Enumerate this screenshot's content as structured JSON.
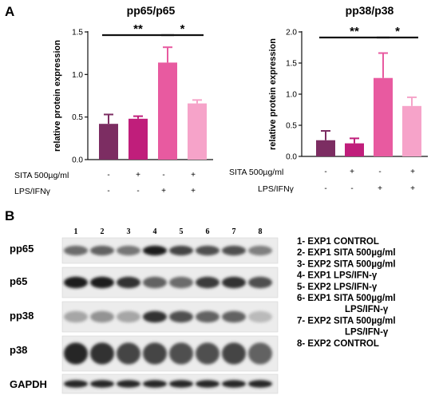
{
  "panel_letters": [
    "A",
    "B"
  ],
  "chart_data": [
    {
      "type": "bar",
      "title": "pp65/p65",
      "ylabel": "relative protein expression",
      "ylim": [
        0,
        1.5
      ],
      "yticks": [
        "0.0",
        "0.5",
        "1.0",
        "1.5"
      ],
      "values": [
        0.42,
        0.48,
        1.14,
        0.66
      ],
      "errors": [
        0.11,
        0.03,
        0.18,
        0.04
      ],
      "colors": [
        "#7c2d62",
        "#c01e7b",
        "#e85aa0",
        "#f6a3c9"
      ],
      "significance": [
        {
          "from": 1,
          "to": 3,
          "label": "**"
        },
        {
          "from": 3,
          "to": 4,
          "label": "*"
        }
      ]
    },
    {
      "type": "bar",
      "title": "pp38/p38",
      "ylabel": "relative protein expression",
      "ylim": [
        0,
        2.0
      ],
      "yticks": [
        "0.0",
        "0.5",
        "1.0",
        "1.5",
        "2.0"
      ],
      "values": [
        0.26,
        0.21,
        1.26,
        0.81
      ],
      "errors": [
        0.15,
        0.08,
        0.4,
        0.14
      ],
      "colors": [
        "#7c2d62",
        "#c01e7b",
        "#e85aa0",
        "#f6a3c9"
      ],
      "significance": [
        {
          "from": 1,
          "to": 3,
          "label": "**"
        },
        {
          "from": 3,
          "to": 4,
          "label": "*"
        }
      ]
    }
  ],
  "treatments": [
    {
      "label": "SITA 500µg/ml",
      "signs": [
        "-",
        "+",
        "-",
        "+"
      ]
    },
    {
      "label": "LPS/IFNγ",
      "signs": [
        "-",
        "-",
        "+",
        "+"
      ]
    }
  ],
  "blot": {
    "lane_numbers": [
      "1",
      "2",
      "3",
      "4",
      "5",
      "6",
      "7",
      "8"
    ],
    "rows": [
      {
        "label": "pp65",
        "intensity": [
          0.55,
          0.6,
          0.5,
          0.95,
          0.75,
          0.7,
          0.7,
          0.45
        ]
      },
      {
        "label": "p65",
        "intensity": [
          0.95,
          0.95,
          0.85,
          0.6,
          0.55,
          0.8,
          0.85,
          0.7
        ]
      },
      {
        "label": "pp38",
        "intensity": [
          0.25,
          0.35,
          0.25,
          0.85,
          0.7,
          0.6,
          0.6,
          0.15
        ]
      },
      {
        "label": "p38",
        "intensity": [
          0.9,
          0.85,
          0.75,
          0.75,
          0.7,
          0.7,
          0.75,
          0.6
        ]
      },
      {
        "label": "GAPDH",
        "intensity": [
          0.9,
          0.9,
          0.9,
          0.9,
          0.9,
          0.9,
          0.9,
          0.9
        ]
      }
    ]
  },
  "legend": [
    "1- EXP1 CONTROL",
    "2- EXP1 SITA 500µg/ml",
    "3- EXP2 SITA 500µg/ml",
    "4- EXP1 LPS/IFN-γ",
    "5- EXP2 LPS/IFN-γ",
    "6- EXP1 SITA 500µg/ml",
    "LPS/IFN-γ",
    "7- EXP2 SITA 500µg/ml",
    "LPS/IFN-γ",
    "8- EXP2 CONTROL"
  ]
}
